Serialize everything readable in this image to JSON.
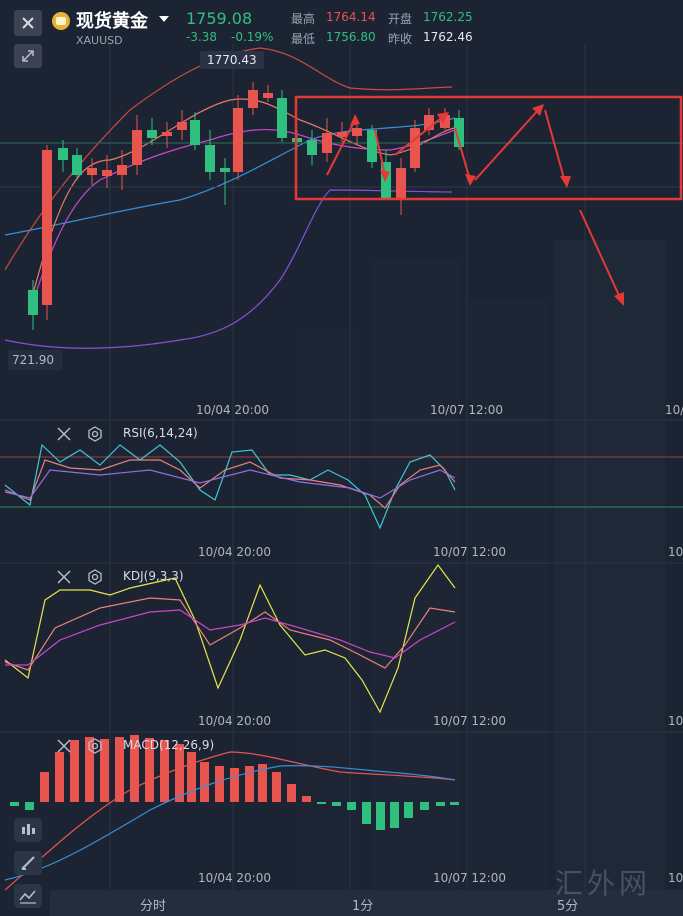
{
  "header": {
    "title": "现货黄金",
    "symbol": "XAUUSD",
    "price": "1759.08",
    "change": "-3.38",
    "change_pct": "-0.19%",
    "high_label": "最高",
    "high": "1764.14",
    "open_label": "开盘",
    "open": "1762.25",
    "low_label": "最低",
    "low": "1756.80",
    "prev_close_label": "昨收",
    "prev_close": "1762.46"
  },
  "main_chart": {
    "max_label": "1770.43",
    "min_label": "721.90",
    "time_labels": [
      "10/04 20:00",
      "10/07 12:00",
      "10/"
    ]
  },
  "indicators": {
    "rsi": {
      "label": "RSI(6,14,24)",
      "time_labels": [
        "10/04 20:00",
        "10/07 12:00",
        "10/"
      ]
    },
    "kdj": {
      "label": "KDJ(9,3,3)",
      "time_labels": [
        "10/04 20:00",
        "10/07 12:00",
        "10/"
      ]
    },
    "macd": {
      "label": "MACD(12,26,9)",
      "time_labels": [
        "10/04 20:00",
        "10/07 12:00",
        "10/"
      ]
    }
  },
  "tabs": [
    "分时",
    "1分",
    "5分"
  ],
  "watermark": "汇外网",
  "colors": {
    "up": "#e8544e",
    "down": "#2fbf7e",
    "background": "#1c2433"
  },
  "icons": [
    "close-icon",
    "shrink-icon",
    "gold-coin-icon",
    "dropdown-caret-icon",
    "settings-icon",
    "candlestick-icon",
    "draw-icon",
    "line-chart-icon"
  ]
}
